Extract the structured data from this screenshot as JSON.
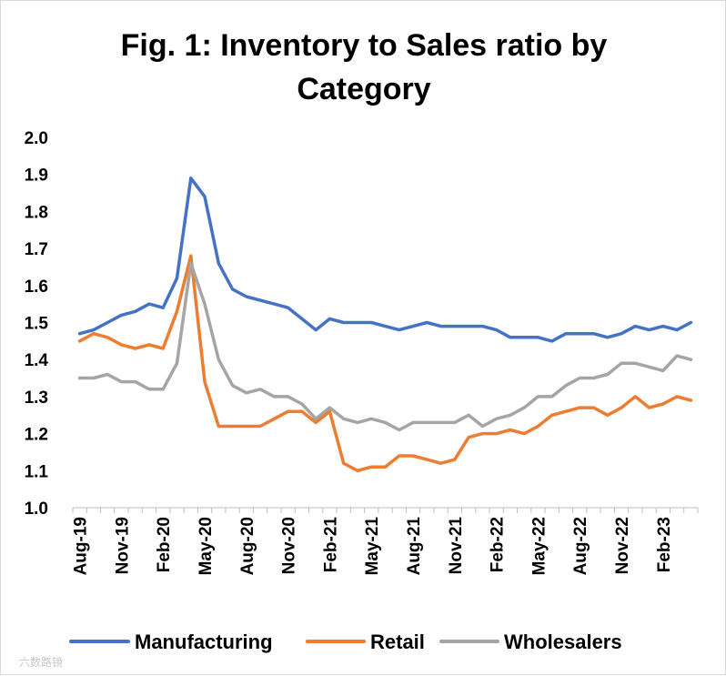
{
  "chart_data": {
    "type": "line",
    "title_lines": [
      "Fig. 1: Inventory to Sales ratio by",
      "Category"
    ],
    "title": "Fig. 1: Inventory to Sales ratio by Category",
    "xlabel": "",
    "ylabel": "",
    "ylim": [
      1.0,
      2.0
    ],
    "yticks": [
      "1.0",
      "1.1",
      "1.2",
      "1.3",
      "1.4",
      "1.5",
      "1.6",
      "1.7",
      "1.8",
      "1.9",
      "2.0"
    ],
    "grid": false,
    "legend_position": "bottom",
    "x_start": "Aug-19",
    "x_end": "May-23",
    "x_tick_labels": [
      "Aug-19",
      "Nov-19",
      "Feb-20",
      "May-20",
      "Aug-20",
      "Nov-20",
      "Feb-21",
      "May-21",
      "Aug-21",
      "Nov-21",
      "Feb-22",
      "May-22",
      "Aug-22",
      "Nov-22",
      "Feb-23"
    ],
    "series": [
      {
        "name": "Manufacturing",
        "color": "#4472C4",
        "values": [
          1.47,
          1.48,
          1.5,
          1.52,
          1.53,
          1.55,
          1.54,
          1.62,
          1.89,
          1.84,
          1.66,
          1.59,
          1.57,
          1.56,
          1.55,
          1.54,
          1.51,
          1.48,
          1.51,
          1.5,
          1.5,
          1.5,
          1.49,
          1.48,
          1.49,
          1.5,
          1.49,
          1.49,
          1.49,
          1.49,
          1.48,
          1.46,
          1.46,
          1.46,
          1.45,
          1.47,
          1.47,
          1.47,
          1.46,
          1.47,
          1.49,
          1.48,
          1.49,
          1.48,
          1.5
        ]
      },
      {
        "name": "Retail",
        "color": "#ED7D31",
        "values": [
          1.45,
          1.47,
          1.46,
          1.44,
          1.43,
          1.44,
          1.43,
          1.53,
          1.68,
          1.34,
          1.22,
          1.22,
          1.22,
          1.22,
          1.24,
          1.26,
          1.26,
          1.23,
          1.26,
          1.12,
          1.1,
          1.11,
          1.11,
          1.14,
          1.14,
          1.13,
          1.12,
          1.13,
          1.19,
          1.2,
          1.2,
          1.21,
          1.2,
          1.22,
          1.25,
          1.26,
          1.27,
          1.27,
          1.25,
          1.27,
          1.3,
          1.27,
          1.28,
          1.3,
          1.29
        ]
      },
      {
        "name": "Wholesalers",
        "color": "#A5A5A5",
        "values": [
          1.35,
          1.35,
          1.36,
          1.34,
          1.34,
          1.32,
          1.32,
          1.39,
          1.66,
          1.55,
          1.4,
          1.33,
          1.31,
          1.32,
          1.3,
          1.3,
          1.28,
          1.24,
          1.27,
          1.24,
          1.23,
          1.24,
          1.23,
          1.21,
          1.23,
          1.23,
          1.23,
          1.23,
          1.25,
          1.22,
          1.24,
          1.25,
          1.27,
          1.3,
          1.3,
          1.33,
          1.35,
          1.35,
          1.36,
          1.39,
          1.39,
          1.38,
          1.37,
          1.41,
          1.4
        ]
      }
    ]
  },
  "watermark_text": "六数路镜"
}
